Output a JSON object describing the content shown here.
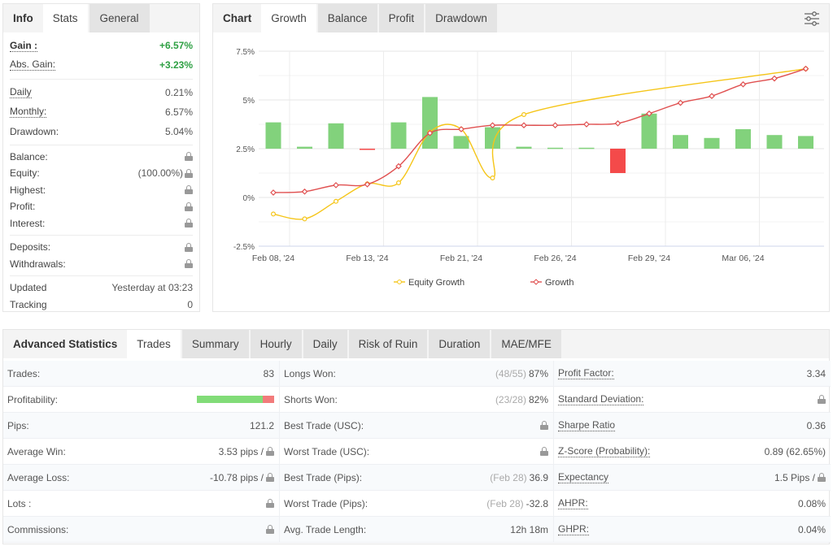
{
  "left": {
    "tabs": [
      {
        "label": "Info"
      },
      {
        "label": "Stats"
      },
      {
        "label": "General"
      }
    ],
    "gain": {
      "label": "Gain :",
      "value": "+6.57%"
    },
    "abs_gain": {
      "label": "Abs. Gain:",
      "value": "+3.23%"
    },
    "daily": {
      "label": "Daily",
      "value": "0.21%"
    },
    "monthly": {
      "label": "Monthly:",
      "value": "6.57%"
    },
    "drawdown": {
      "label": "Drawdown:",
      "value": "5.04%"
    },
    "balance": {
      "label": "Balance:"
    },
    "equity": {
      "label": "Equity:",
      "value": "(100.00%)"
    },
    "highest": {
      "label": "Highest:"
    },
    "profit": {
      "label": "Profit:"
    },
    "interest": {
      "label": "Interest:"
    },
    "deposits": {
      "label": "Deposits:"
    },
    "withdrawals": {
      "label": "Withdrawals:"
    },
    "updated": {
      "label": "Updated",
      "value": "Yesterday at 03:23"
    },
    "tracking": {
      "label": "Tracking",
      "value": "0"
    }
  },
  "chart_panel": {
    "tabs": [
      {
        "label": "Chart"
      },
      {
        "label": "Growth"
      },
      {
        "label": "Balance"
      },
      {
        "label": "Profit"
      },
      {
        "label": "Drawdown"
      }
    ],
    "settings_icon": "sliders-icon"
  },
  "chart_data": {
    "type": "line",
    "ylim": [
      -2.5,
      7.5
    ],
    "yticks": [
      "7.5%",
      "5%",
      "2.5%",
      "0%",
      "-2.5%"
    ],
    "ytick_values": [
      7.5,
      5,
      2.5,
      0,
      -2.5
    ],
    "xtick_labels": [
      "Feb 08, '24",
      "Feb 13, '24",
      "Feb 21, '24",
      "Feb 26, '24",
      "Feb 29, '24",
      "Mar 06, '24"
    ],
    "xtick_index": [
      0,
      3,
      6,
      9,
      12,
      15
    ],
    "grid": true,
    "legend_placement": "bottom",
    "bars": {
      "baseline": 2.5,
      "top_values": [
        3.85,
        2.6,
        3.8,
        2.45,
        3.85,
        5.15,
        3.15,
        3.6,
        2.6,
        2.55,
        2.55,
        1.25,
        4.3,
        3.2,
        3.05,
        3.5,
        3.2,
        3.15
      ],
      "positive_color": "#82d27c",
      "negative_color": "#f44a4a"
    },
    "series": [
      {
        "name": "Equity Growth",
        "color": "#f5c518",
        "values": [
          -0.85,
          -1.1,
          -0.2,
          0.7,
          0.75,
          3.35,
          3.5,
          1.0,
          4.25,
          null,
          null,
          null,
          null,
          null,
          null,
          null,
          null,
          6.6
        ]
      },
      {
        "name": "Growth",
        "color": "#e05050",
        "values": [
          0.25,
          0.3,
          0.63,
          0.67,
          1.6,
          3.3,
          3.5,
          3.7,
          3.7,
          3.7,
          3.75,
          3.8,
          4.3,
          4.85,
          5.2,
          5.8,
          6.1,
          6.6
        ]
      }
    ]
  },
  "bottom": {
    "tabs": [
      {
        "label": "Advanced Statistics"
      },
      {
        "label": "Trades"
      },
      {
        "label": "Summary"
      },
      {
        "label": "Hourly"
      },
      {
        "label": "Daily"
      },
      {
        "label": "Risk of Ruin"
      },
      {
        "label": "Duration"
      },
      {
        "label": "MAE/MFE"
      }
    ],
    "profitability": {
      "won_fraction": 0.855,
      "won_color": "#82dc78",
      "lost_color": "#f27b7b"
    },
    "rows": [
      [
        {
          "label": "Trades:",
          "value": "83"
        },
        {
          "label": "Longs Won:",
          "muted": "(48/55)",
          "value": "87%"
        },
        {
          "label": "Profit Factor:",
          "value": "3.34",
          "dotted": true
        }
      ],
      [
        {
          "label": "Profitability:"
        },
        {
          "label": "Shorts Won:",
          "muted": "(23/28)",
          "value": "82%"
        },
        {
          "label": "Standard Deviation:",
          "lock": true,
          "dotted": true
        }
      ],
      [
        {
          "label": "Pips:",
          "value": "121.2"
        },
        {
          "label": "Best Trade (USC):",
          "lock": true
        },
        {
          "label": "Sharpe Ratio",
          "value": "0.36",
          "dotted": true
        }
      ],
      [
        {
          "label": "Average Win:",
          "value": "3.53 pips /",
          "lock": true
        },
        {
          "label": "Worst Trade (USC):",
          "lock": true
        },
        {
          "label": "Z-Score (Probability):",
          "value": "0.89 (62.65%)",
          "dotted": true
        }
      ],
      [
        {
          "label": "Average Loss:",
          "value": "-10.78 pips /",
          "lock": true
        },
        {
          "label": "Best Trade (Pips):",
          "muted": "(Feb 28)",
          "value": "36.9"
        },
        {
          "label": "Expectancy",
          "value": "1.5 Pips /",
          "lock": true,
          "dotted": true
        }
      ],
      [
        {
          "label": "Lots :",
          "lock": true
        },
        {
          "label": "Worst Trade (Pips):",
          "muted": "(Feb 28)",
          "value": "-32.8"
        },
        {
          "label": "AHPR:",
          "value": "0.08%",
          "dotted": true
        }
      ],
      [
        {
          "label": "Commissions:",
          "lock": true
        },
        {
          "label": "Avg. Trade Length:",
          "value": "12h 18m"
        },
        {
          "label": "GHPR:",
          "value": "0.04%",
          "dotted": true
        }
      ]
    ]
  }
}
